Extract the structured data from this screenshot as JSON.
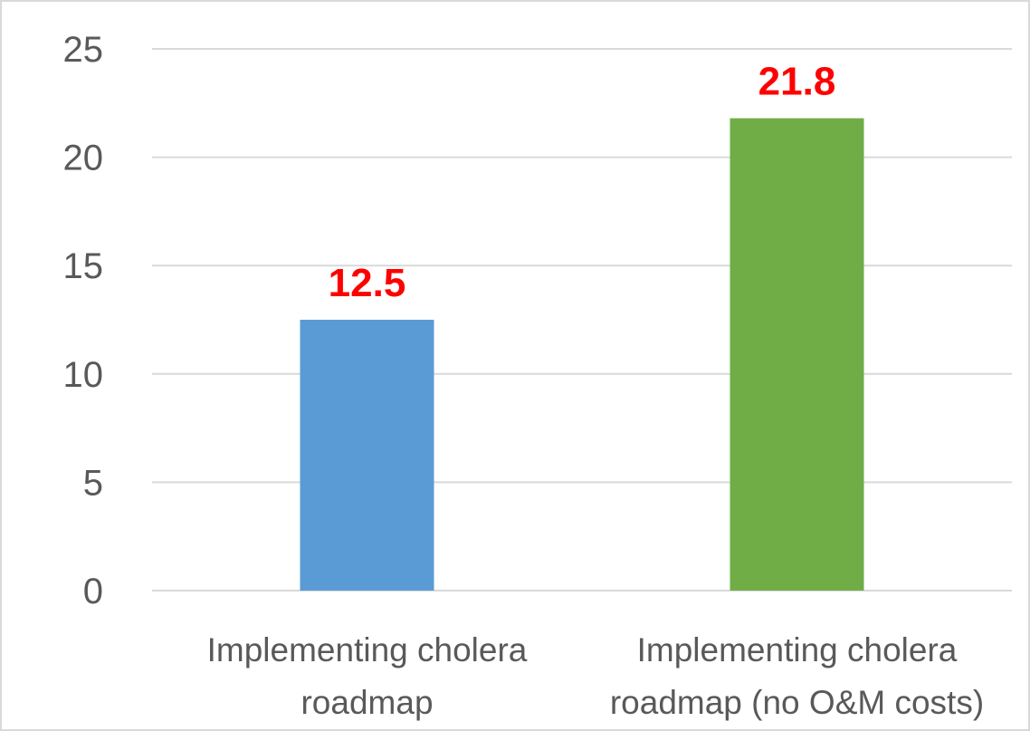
{
  "chart_data": {
    "type": "bar",
    "categories": [
      [
        "Implementing cholera",
        "roadmap"
      ],
      [
        "Implementing cholera",
        "roadmap (no O&M costs)"
      ]
    ],
    "values": [
      12.5,
      21.8
    ],
    "data_labels": [
      "12.5",
      "21.8"
    ],
    "bar_colors": [
      "#5b9bd5",
      "#70ad47"
    ],
    "data_label_color": "#ff0000",
    "ylim": [
      0,
      25
    ],
    "yticks": [
      0,
      5,
      10,
      15,
      20,
      25
    ],
    "title": "",
    "xlabel": "",
    "ylabel": "",
    "grid": true,
    "legend": "none"
  },
  "colors": {
    "gridline": "#d9d9d9",
    "axis_text": "#595959",
    "border": "#d9d9d9"
  }
}
